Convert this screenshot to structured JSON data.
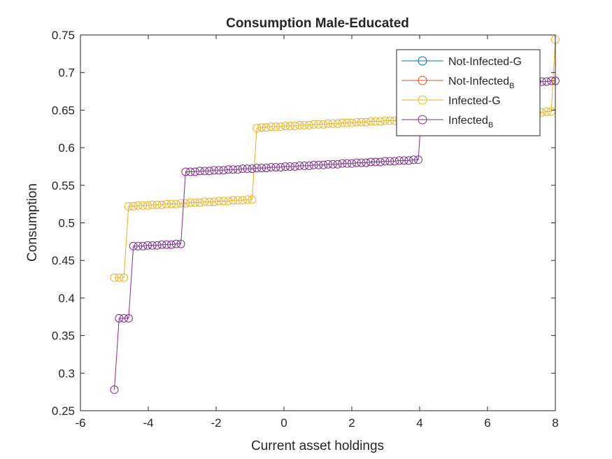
{
  "chart_data": {
    "type": "line",
    "title": "Consumption Male-Educated",
    "xlabel": "Current asset holdings",
    "ylabel": "Consumption",
    "xlim": [
      -6,
      8
    ],
    "ylim": [
      0.25,
      0.75
    ],
    "xticks": [
      -6,
      -4,
      -2,
      0,
      2,
      4,
      6,
      8
    ],
    "yticks": [
      0.25,
      0.3,
      0.35,
      0.4,
      0.45,
      0.5,
      0.55,
      0.6,
      0.65,
      0.7,
      0.75
    ],
    "xtick_labels": [
      "-6",
      "-4",
      "-2",
      "0",
      "2",
      "4",
      "6",
      "8"
    ],
    "ytick_labels": [
      "0.25",
      "0.3",
      "0.35",
      "0.4",
      "0.45",
      "0.5",
      "0.55",
      "0.6",
      "0.65",
      "0.7",
      "0.75"
    ],
    "grid": false,
    "legend_position": "top-right",
    "marker": "open-circle",
    "series": [
      {
        "name": "Not-Infected-G",
        "legend_main": "Not-Infected-G",
        "legend_sub": "",
        "color": "#0072BD",
        "x": [],
        "y": []
      },
      {
        "name": "Not-Infected_B",
        "legend_main": "Not-Infected",
        "legend_sub": "B",
        "color": "#D95319",
        "x": [],
        "y": []
      },
      {
        "name": "Infected-G",
        "legend_main": "Infected-G",
        "legend_sub": "",
        "color": "#EDB120",
        "x": [
          -5.0,
          -4.86,
          -4.72,
          -4.58,
          -4.44,
          -4.3,
          -4.16,
          -4.02,
          -3.88,
          -3.74,
          -3.6,
          -3.46,
          -3.32,
          -3.18,
          -3.04,
          -2.9,
          -2.76,
          -2.62,
          -2.48,
          -2.34,
          -2.2,
          -2.06,
          -1.92,
          -1.78,
          -1.64,
          -1.5,
          -1.36,
          -1.22,
          -1.08,
          -0.94,
          -0.8,
          -0.66,
          -0.52,
          -0.38,
          -0.24,
          -0.1,
          0.04,
          0.18,
          0.32,
          0.46,
          0.6,
          0.74,
          0.88,
          1.02,
          1.16,
          1.3,
          1.44,
          1.58,
          1.72,
          1.86,
          2.0,
          2.14,
          2.28,
          2.42,
          2.56,
          2.7,
          2.84,
          2.98,
          3.12,
          3.26,
          3.4,
          3.54,
          3.68,
          3.82,
          3.96,
          4.1,
          4.24,
          4.38,
          4.52,
          4.66,
          4.8,
          4.94,
          5.08,
          5.22,
          5.36,
          5.5,
          5.64,
          5.78,
          5.92,
          6.06,
          6.2,
          6.34,
          6.48,
          6.62,
          6.76,
          6.9,
          7.04,
          7.18,
          7.32,
          7.46,
          7.6,
          7.74,
          7.88,
          8.0
        ],
        "y": [
          0.427,
          0.427,
          0.427,
          0.522,
          0.522,
          0.523,
          0.523,
          0.523,
          0.524,
          0.524,
          0.524,
          0.525,
          0.525,
          0.525,
          0.526,
          0.526,
          0.527,
          0.527,
          0.527,
          0.528,
          0.528,
          0.528,
          0.529,
          0.529,
          0.529,
          0.53,
          0.53,
          0.53,
          0.531,
          0.531,
          0.626,
          0.627,
          0.627,
          0.628,
          0.628,
          0.628,
          0.629,
          0.629,
          0.629,
          0.63,
          0.63,
          0.63,
          0.631,
          0.631,
          0.631,
          0.632,
          0.632,
          0.632,
          0.633,
          0.633,
          0.633,
          0.634,
          0.634,
          0.634,
          0.635,
          0.635,
          0.635,
          0.636,
          0.636,
          0.636,
          0.637,
          0.637,
          0.637,
          0.638,
          0.638,
          0.638,
          0.639,
          0.639,
          0.639,
          0.64,
          0.64,
          0.64,
          0.641,
          0.641,
          0.641,
          0.642,
          0.642,
          0.642,
          0.643,
          0.643,
          0.643,
          0.644,
          0.644,
          0.644,
          0.645,
          0.645,
          0.645,
          0.646,
          0.646,
          0.646,
          0.647,
          0.648,
          0.648,
          0.744
        ]
      },
      {
        "name": "Infected_B",
        "legend_main": "Infected",
        "legend_sub": "B",
        "color": "#7E2F8E",
        "x": [
          -5.0,
          -4.86,
          -4.72,
          -4.58,
          -4.44,
          -4.3,
          -4.16,
          -4.02,
          -3.88,
          -3.74,
          -3.6,
          -3.46,
          -3.32,
          -3.18,
          -3.04,
          -2.9,
          -2.76,
          -2.62,
          -2.48,
          -2.34,
          -2.2,
          -2.06,
          -1.92,
          -1.78,
          -1.64,
          -1.5,
          -1.36,
          -1.22,
          -1.08,
          -0.94,
          -0.8,
          -0.66,
          -0.52,
          -0.38,
          -0.24,
          -0.1,
          0.04,
          0.18,
          0.32,
          0.46,
          0.6,
          0.74,
          0.88,
          1.02,
          1.16,
          1.3,
          1.44,
          1.58,
          1.72,
          1.86,
          2.0,
          2.14,
          2.28,
          2.42,
          2.56,
          2.7,
          2.84,
          2.98,
          3.12,
          3.26,
          3.4,
          3.54,
          3.68,
          3.82,
          3.96,
          4.1,
          4.24,
          4.38,
          4.52,
          4.66,
          4.8,
          4.94,
          5.08,
          5.22,
          5.36,
          5.5,
          5.64,
          5.78,
          5.92,
          6.06,
          6.2,
          6.34,
          6.48,
          6.62,
          6.76,
          6.9,
          7.04,
          7.18,
          7.32,
          7.46,
          7.6,
          7.74,
          7.88,
          8.0
        ],
        "y": [
          0.278,
          0.373,
          0.373,
          0.373,
          0.469,
          0.469,
          0.469,
          0.47,
          0.47,
          0.47,
          0.471,
          0.471,
          0.471,
          0.472,
          0.472,
          0.568,
          0.568,
          0.568,
          0.569,
          0.569,
          0.569,
          0.57,
          0.57,
          0.57,
          0.571,
          0.571,
          0.571,
          0.572,
          0.572,
          0.572,
          0.573,
          0.573,
          0.573,
          0.574,
          0.574,
          0.574,
          0.575,
          0.575,
          0.575,
          0.576,
          0.576,
          0.576,
          0.577,
          0.577,
          0.577,
          0.578,
          0.578,
          0.578,
          0.579,
          0.579,
          0.579,
          0.58,
          0.58,
          0.58,
          0.581,
          0.581,
          0.581,
          0.582,
          0.582,
          0.582,
          0.583,
          0.583,
          0.583,
          0.584,
          0.584,
          0.68,
          0.68,
          0.68,
          0.681,
          0.681,
          0.681,
          0.682,
          0.682,
          0.682,
          0.683,
          0.683,
          0.683,
          0.684,
          0.684,
          0.684,
          0.685,
          0.685,
          0.685,
          0.686,
          0.686,
          0.686,
          0.687,
          0.687,
          0.687,
          0.688,
          0.688,
          0.688,
          0.689,
          0.689
        ]
      }
    ]
  }
}
